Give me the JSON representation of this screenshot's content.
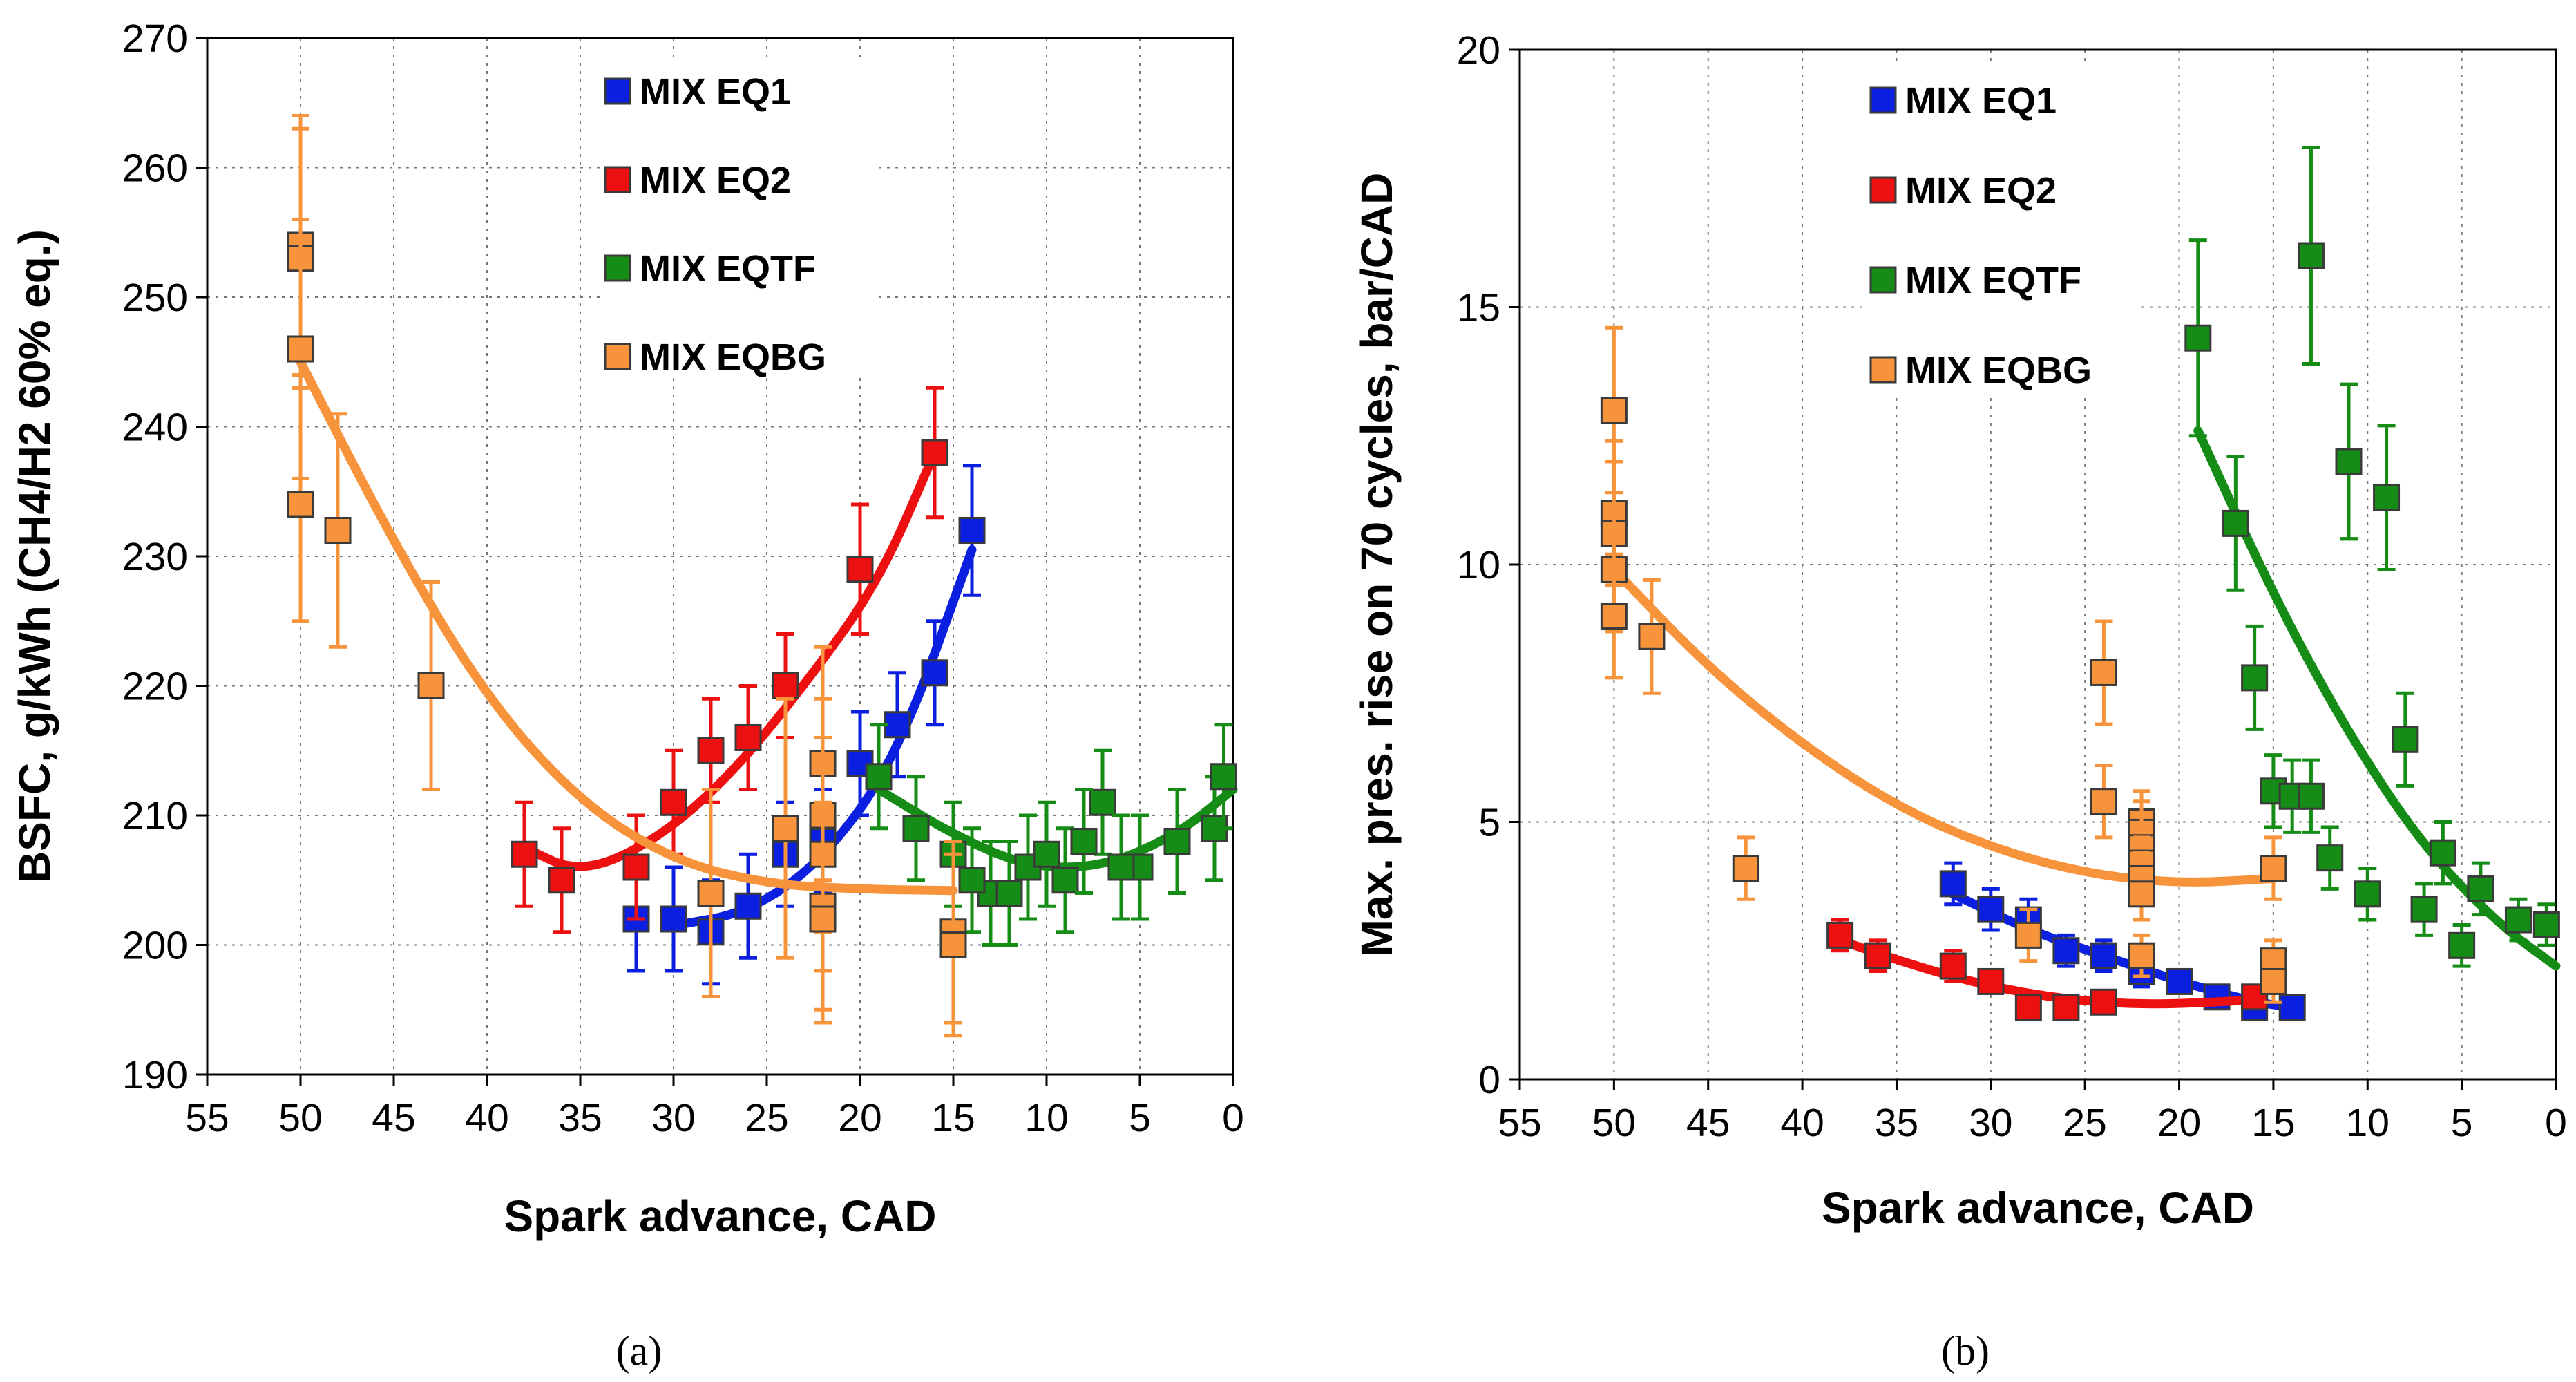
{
  "chart_data": [
    {
      "type": "scatter",
      "panel_label": "(a)",
      "xlabel": "Spark advance, CAD",
      "ylabel": "BSFC, g/kWh (CH4/H2  60% eq.)",
      "xlim": [
        55,
        0
      ],
      "ylim": [
        190,
        270
      ],
      "xticks": [
        55,
        50,
        45,
        40,
        35,
        30,
        25,
        20,
        15,
        10,
        5,
        0
      ],
      "yticks": [
        190,
        200,
        210,
        220,
        230,
        240,
        250,
        260,
        270
      ],
      "grid": true,
      "legend_position": "top-center",
      "series": [
        {
          "name": "MIX EQ1",
          "color": "#0a1fe0",
          "x": [
            32,
            30,
            28,
            26,
            24,
            22,
            20,
            18,
            16,
            14
          ],
          "y": [
            202,
            202,
            201,
            203,
            207,
            208,
            214,
            217,
            221,
            232
          ],
          "err": [
            4,
            4,
            4,
            4,
            4,
            4,
            4,
            4,
            4,
            5
          ],
          "fit": [
            [
              30,
              201.5
            ],
            [
              26,
              202.5
            ],
            [
              22,
              206.5
            ],
            [
              18,
              214.5
            ],
            [
              14,
              230.5
            ]
          ]
        },
        {
          "name": "MIX EQ2",
          "color": "#ec1010",
          "x": [
            38,
            36,
            32,
            30,
            28,
            26,
            24,
            20,
            16
          ],
          "y": [
            207,
            205,
            206,
            211,
            215,
            216,
            220,
            229,
            238
          ],
          "err": [
            4,
            4,
            4,
            4,
            4,
            4,
            4,
            5,
            5
          ],
          "fit": [
            [
              38,
              207.5
            ],
            [
              35,
              205.5
            ],
            [
              31,
              208
            ],
            [
              27,
              213
            ],
            [
              23,
              220
            ],
            [
              19,
              228
            ],
            [
              16,
              238
            ]
          ]
        },
        {
          "name": "MIX EQTF",
          "color": "#158c15",
          "x": [
            19,
            17,
            15,
            13,
            11,
            9,
            7,
            5,
            3,
            1,
            12,
            10,
            8,
            6,
            0.5,
            14
          ],
          "y": [
            213,
            209,
            207,
            204,
            206,
            205,
            211,
            206,
            208,
            209,
            204,
            207,
            208,
            206,
            213,
            205
          ],
          "err": [
            4,
            4,
            4,
            4,
            4,
            4,
            4,
            4,
            4,
            4,
            4,
            4,
            4,
            4,
            4,
            4
          ],
          "fit": [
            [
              19,
              212
            ],
            [
              15,
              208.5
            ],
            [
              11,
              206
            ],
            [
              7,
              206
            ],
            [
              3,
              208.5
            ],
            [
              0,
              212
            ]
          ]
        },
        {
          "name": "MIX EQBG",
          "color": "#f7943b",
          "x": [
            50,
            50,
            50,
            50,
            48,
            43,
            28,
            24,
            22,
            22,
            22,
            22,
            22,
            15,
            15
          ],
          "y": [
            254,
            253,
            246,
            234,
            232,
            220,
            204,
            209,
            214,
            210,
            207,
            203,
            202,
            201,
            200
          ],
          "err": [
            10,
            10,
            10,
            9,
            9,
            8,
            8,
            10,
            9,
            9,
            9,
            8,
            8,
            7,
            7
          ],
          "fit": [
            [
              50,
              245
            ],
            [
              45,
              231
            ],
            [
              40,
              219
            ],
            [
              35,
              211
            ],
            [
              30,
              206.5
            ],
            [
              25,
              204.7
            ],
            [
              20,
              204.3
            ],
            [
              15,
              204.2
            ]
          ]
        }
      ]
    },
    {
      "type": "scatter",
      "panel_label": "(b)",
      "xlabel": "Spark advance, CAD",
      "ylabel": "Max. pres. rise on 70 cycles, bar/CAD",
      "xlim": [
        55,
        0
      ],
      "ylim": [
        0,
        20
      ],
      "xticks": [
        55,
        50,
        45,
        40,
        35,
        30,
        25,
        20,
        15,
        10,
        5,
        0
      ],
      "yticks": [
        0,
        5,
        10,
        15,
        20
      ],
      "grid": true,
      "legend_position": "top-center",
      "series": [
        {
          "name": "MIX EQ1",
          "color": "#0a1fe0",
          "x": [
            32,
            30,
            28,
            26,
            24,
            22,
            20,
            18,
            16,
            14
          ],
          "y": [
            3.8,
            3.3,
            3.1,
            2.5,
            2.4,
            2.1,
            1.9,
            1.6,
            1.4,
            1.4
          ],
          "err": [
            0.4,
            0.4,
            0.4,
            0.3,
            0.3,
            0.3,
            0.2,
            0.2,
            0.2,
            0.2
          ],
          "fit": [
            [
              32,
              3.6
            ],
            [
              28,
              2.9
            ],
            [
              24,
              2.4
            ],
            [
              20,
              1.9
            ],
            [
              16,
              1.5
            ],
            [
              14,
              1.4
            ]
          ]
        },
        {
          "name": "MIX EQ2",
          "color": "#ec1010",
          "x": [
            38,
            36,
            32,
            30,
            28,
            26,
            24,
            16
          ],
          "y": [
            2.8,
            2.4,
            2.2,
            1.9,
            1.4,
            1.4,
            1.5,
            1.6
          ],
          "err": [
            0.3,
            0.3,
            0.3,
            0.2,
            0.2,
            0.2,
            0.2,
            0.2
          ],
          "fit": [
            [
              38,
              2.7
            ],
            [
              34,
              2.2
            ],
            [
              30,
              1.8
            ],
            [
              26,
              1.55
            ],
            [
              22,
              1.45
            ],
            [
              18,
              1.5
            ],
            [
              16,
              1.55
            ]
          ]
        },
        {
          "name": "MIX EQTF",
          "color": "#158c15",
          "x": [
            19,
            17,
            16,
            15,
            14,
            13,
            12,
            11,
            10,
            9,
            8,
            7,
            6,
            5,
            4,
            2,
            0.5,
            13,
            11
          ],
          "y": [
            14.4,
            10.8,
            7.8,
            5.6,
            5.5,
            16,
            4.3,
            12,
            3.6,
            11.3,
            6.6,
            3.3,
            4.4,
            2.6,
            3.7,
            3.1,
            3.0,
            5.5,
            12
          ],
          "err": [
            1.9,
            1.3,
            1.0,
            0.7,
            0.7,
            2.1,
            0.6,
            1.5,
            0.5,
            1.4,
            0.9,
            0.5,
            0.6,
            0.4,
            0.5,
            0.4,
            0.4,
            0.7,
            1.5
          ],
          "fit": [
            [
              19,
              12.6
            ],
            [
              15,
              9.4
            ],
            [
              11,
              6.7
            ],
            [
              7,
              4.5
            ],
            [
              3,
              3.0
            ],
            [
              0,
              2.2
            ]
          ]
        },
        {
          "name": "MIX EQBG",
          "color": "#f7943b",
          "x": [
            50,
            50,
            50,
            50,
            50,
            48,
            43,
            28,
            24,
            24,
            22,
            22,
            22,
            22,
            22,
            22,
            22,
            15,
            15,
            15
          ],
          "y": [
            13,
            11,
            10.6,
            9.9,
            9.0,
            8.6,
            4.1,
            2.8,
            7.9,
            5.4,
            5.0,
            4.8,
            4.5,
            4.2,
            3.9,
            3.6,
            2.4,
            4.1,
            2.3,
            1.9
          ],
          "err": [
            1.6,
            1.4,
            1.4,
            1.2,
            1.2,
            1.1,
            0.6,
            0.5,
            1.0,
            0.7,
            0.6,
            0.6,
            0.6,
            0.5,
            0.5,
            0.5,
            0.4,
            0.6,
            0.4,
            0.4
          ],
          "fit": [
            [
              50,
              9.9
            ],
            [
              45,
              8.0
            ],
            [
              40,
              6.5
            ],
            [
              35,
              5.3
            ],
            [
              30,
              4.5
            ],
            [
              25,
              4.0
            ],
            [
              20,
              3.8
            ],
            [
              15,
              3.9
            ]
          ]
        }
      ]
    }
  ]
}
